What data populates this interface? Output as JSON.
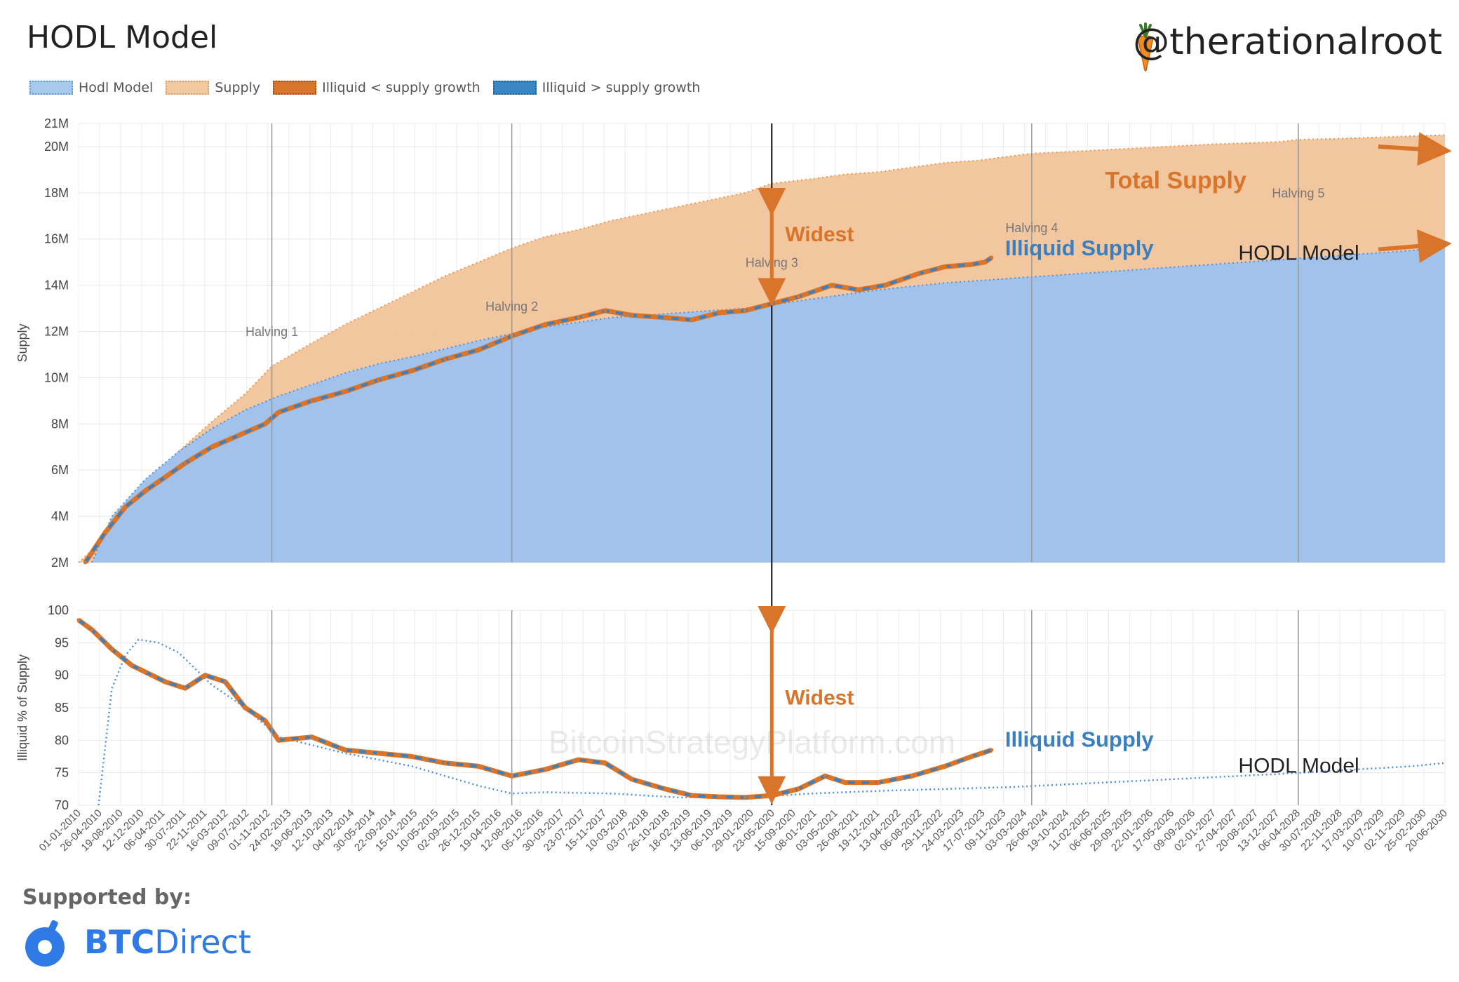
{
  "header": {
    "title": "HODL Model",
    "handle": "@therationalroot"
  },
  "legend": [
    {
      "label": "Hodl Model",
      "fill": "#a7c8ef",
      "border": "#5a9ad8"
    },
    {
      "label": "Supply",
      "fill": "#f3c9a0",
      "border": "#e39a5a"
    },
    {
      "label": "Illiquid < supply growth",
      "fill": "#d9752a",
      "border": "#a64e10"
    },
    {
      "label": "Illiquid > supply growth",
      "fill": "#3a87c4",
      "border": "#1f5f96"
    }
  ],
  "footer": {
    "supported_label": "Supported by:",
    "sponsor_bold": "BTC",
    "sponsor_rest": "Direct"
  },
  "colors": {
    "hodl": "#9fc2ec",
    "hodl_line": "#4a90e2",
    "supply": "#f1c49b",
    "supply_line": "#e8964f",
    "orange": "#d9752a",
    "blue": "#3a7fc0"
  },
  "chart_data": [
    {
      "type": "area",
      "ylabel": "Supply",
      "ylim": [
        2,
        21
      ],
      "y_unit": "M",
      "yticks": [
        "2M",
        "4M",
        "6M",
        "8M",
        "10M",
        "12M",
        "14M",
        "16M",
        "18M",
        "20M",
        "21M"
      ],
      "ytick_values": [
        2,
        4,
        6,
        8,
        10,
        12,
        14,
        16,
        18,
        20,
        21
      ],
      "xlim": [
        2010.0,
        2030.5
      ],
      "grid": true,
      "series": [
        {
          "name": "Supply",
          "x": [
            2010.0,
            2010.3,
            2010.7,
            2011.0,
            2011.5,
            2012.0,
            2012.5,
            2012.9,
            2013.5,
            2014.0,
            2014.5,
            2015.0,
            2015.5,
            2016.0,
            2016.5,
            2017.0,
            2017.5,
            2018.0,
            2018.5,
            2019.0,
            2019.5,
            2020.0,
            2020.4,
            2021.0,
            2021.5,
            2022.0,
            2022.5,
            2023.0,
            2023.5,
            2024.3,
            2025.0,
            2026.0,
            2027.0,
            2028.0,
            2028.3,
            2029.0,
            2030.0,
            2030.5
          ],
          "values": [
            2.0,
            2.8,
            4.3,
            5.3,
            6.8,
            8.1,
            9.3,
            10.5,
            11.5,
            12.3,
            13.0,
            13.7,
            14.4,
            15.0,
            15.6,
            16.1,
            16.4,
            16.8,
            17.1,
            17.4,
            17.7,
            18.0,
            18.4,
            18.6,
            18.8,
            18.9,
            19.1,
            19.3,
            19.4,
            19.7,
            19.8,
            19.95,
            20.1,
            20.2,
            20.3,
            20.35,
            20.45,
            20.5
          ]
        },
        {
          "name": "Hodl Model",
          "x": [
            2010.2,
            2010.5,
            2011.0,
            2011.5,
            2012.0,
            2012.5,
            2013.0,
            2013.5,
            2014.0,
            2014.5,
            2015.0,
            2016.0,
            2017.0,
            2018.0,
            2019.0,
            2020.0,
            2021.0,
            2022.0,
            2023.0,
            2024.0,
            2025.0,
            2026.0,
            2027.0,
            2028.0,
            2029.0,
            2030.0,
            2030.5
          ],
          "values": [
            2.0,
            4.0,
            5.6,
            6.8,
            7.8,
            8.6,
            9.2,
            9.7,
            10.2,
            10.6,
            10.9,
            11.6,
            12.2,
            12.6,
            12.8,
            13.0,
            13.4,
            13.8,
            14.1,
            14.3,
            14.5,
            14.7,
            14.9,
            15.1,
            15.3,
            15.5,
            15.7
          ]
        },
        {
          "name": "Illiquid Supply",
          "x": [
            2010.1,
            2010.4,
            2010.7,
            2011.0,
            2011.3,
            2011.6,
            2012.0,
            2012.4,
            2012.8,
            2013.0,
            2013.5,
            2014.0,
            2014.5,
            2015.0,
            2015.5,
            2016.0,
            2016.5,
            2017.0,
            2017.5,
            2017.9,
            2018.3,
            2018.8,
            2019.2,
            2019.6,
            2020.0,
            2020.4,
            2020.8,
            2021.3,
            2021.7,
            2022.1,
            2022.6,
            2023.0,
            2023.4,
            2023.6,
            2023.7
          ],
          "values": [
            2.0,
            3.3,
            4.4,
            5.1,
            5.7,
            6.3,
            7.0,
            7.5,
            8.0,
            8.5,
            9.0,
            9.4,
            9.9,
            10.3,
            10.8,
            11.2,
            11.8,
            12.3,
            12.6,
            12.9,
            12.7,
            12.6,
            12.5,
            12.8,
            12.9,
            13.2,
            13.5,
            14.0,
            13.8,
            14.0,
            14.5,
            14.8,
            14.9,
            15.0,
            15.2
          ]
        }
      ],
      "annotations": [
        {
          "text": "Halving 1",
          "x": 2012.9,
          "y": 11.8
        },
        {
          "text": "Halving 2",
          "x": 2016.5,
          "y": 12.9
        },
        {
          "text": "Halving 3",
          "x": 2020.4,
          "y": 14.8
        },
        {
          "text": "Halving 4",
          "x": 2024.3,
          "y": 16.3
        },
        {
          "text": "Halving 5",
          "x": 2028.3,
          "y": 17.8
        },
        {
          "text": "Widest",
          "x": 2020.6,
          "y": 15.9
        },
        {
          "text": "Total Supply",
          "x": 2025.4,
          "y": 18.2
        },
        {
          "text": "Illiquid Supply",
          "x": 2023.9,
          "y": 15.3
        },
        {
          "text": "HODL Model",
          "x": 2027.4,
          "y": 15.1
        }
      ],
      "watermark": "BitcoinStrategyPlatform.com"
    },
    {
      "type": "line",
      "ylabel": "Illiquid % of Supply",
      "ylim": [
        70,
        100
      ],
      "yticks": [
        "70",
        "75",
        "80",
        "85",
        "90",
        "95",
        "100"
      ],
      "ytick_values": [
        70,
        75,
        80,
        85,
        90,
        95,
        100
      ],
      "xlim": [
        2010.0,
        2030.5
      ],
      "grid": true,
      "series": [
        {
          "name": "HODL Model",
          "x": [
            2010.3,
            2010.5,
            2010.7,
            2010.9,
            2011.2,
            2011.5,
            2012.0,
            2012.5,
            2013.0,
            2014.0,
            2015.0,
            2016.0,
            2016.5,
            2017.0,
            2018.0,
            2019.0,
            2020.0,
            2021.0,
            2022.0,
            2023.0,
            2024.0,
            2025.0,
            2026.0,
            2027.0,
            2028.0,
            2029.0,
            2030.0,
            2030.5
          ],
          "values": [
            70.0,
            88.0,
            93.0,
            95.5,
            95.0,
            93.5,
            88.5,
            85.0,
            80.5,
            78.0,
            76.0,
            73.0,
            71.8,
            72.0,
            71.8,
            71.2,
            71.2,
            71.8,
            72.2,
            72.5,
            72.8,
            73.3,
            73.8,
            74.3,
            74.8,
            75.4,
            76.0,
            76.5
          ]
        },
        {
          "name": "Illiquid Supply",
          "x": [
            2010.0,
            2010.2,
            2010.5,
            2010.8,
            2011.0,
            2011.3,
            2011.6,
            2011.9,
            2012.2,
            2012.5,
            2012.8,
            2013.0,
            2013.5,
            2014.0,
            2014.5,
            2015.0,
            2015.5,
            2016.0,
            2016.5,
            2017.0,
            2017.5,
            2017.9,
            2018.3,
            2018.8,
            2019.2,
            2019.6,
            2020.0,
            2020.4,
            2020.8,
            2021.2,
            2021.5,
            2022.0,
            2022.5,
            2023.0,
            2023.4,
            2023.7
          ],
          "values": [
            98.5,
            97.0,
            94.0,
            91.5,
            90.5,
            89.0,
            88.0,
            90.0,
            89.0,
            85.0,
            83.0,
            80.0,
            80.5,
            78.5,
            78.0,
            77.5,
            76.5,
            76.0,
            74.5,
            75.5,
            77.0,
            76.5,
            74.0,
            72.5,
            71.5,
            71.3,
            71.2,
            71.5,
            72.5,
            74.5,
            73.5,
            73.5,
            74.5,
            76.0,
            77.5,
            78.5
          ]
        }
      ],
      "annotations": [
        {
          "text": "Widest",
          "x": 2020.6,
          "y": 85.5
        },
        {
          "text": "Illiquid Supply",
          "x": 2023.9,
          "y": 79.0
        },
        {
          "text": "HODL Model",
          "x": 2027.4,
          "y": 75.0
        }
      ],
      "watermark": "BitcoinStrategyPlatform.com"
    }
  ],
  "x_axis": {
    "tick_start": 2010.0,
    "tick_labels": [
      "01-01-2010",
      "26-04-2010",
      "19-08-2010",
      "12-12-2010",
      "06-04-2011",
      "30-07-2011",
      "22-11-2011",
      "16-03-2012",
      "09-07-2012",
      "01-11-2012",
      "24-02-2013",
      "19-06-2013",
      "12-10-2013",
      "04-02-2014",
      "30-05-2014",
      "22-09-2014",
      "15-01-2015",
      "10-05-2015",
      "02-09-2015",
      "26-12-2015",
      "19-04-2016",
      "12-08-2016",
      "05-12-2016",
      "30-03-2017",
      "23-07-2017",
      "15-11-2017",
      "10-03-2018",
      "03-07-2018",
      "26-10-2018",
      "18-02-2019",
      "13-06-2019",
      "06-10-2019",
      "29-01-2020",
      "23-05-2020",
      "15-09-2020",
      "08-01-2021",
      "03-05-2021",
      "26-08-2021",
      "19-12-2021",
      "13-04-2022",
      "06-08-2022",
      "29-11-2022",
      "24-03-2023",
      "17-07-2023",
      "09-11-2023",
      "03-03-2024",
      "26-06-2024",
      "19-10-2024",
      "11-02-2025",
      "06-06-2025",
      "29-09-2025",
      "22-01-2026",
      "17-05-2026",
      "09-09-2026",
      "02-01-2027",
      "27-04-2027",
      "20-08-2027",
      "13-12-2027",
      "06-04-2028",
      "30-07-2028",
      "22-11-2028",
      "17-03-2029",
      "10-07-2029",
      "02-11-2029",
      "25-02-2030",
      "20-06-2030"
    ],
    "halving_x": [
      2012.9,
      2016.5,
      2020.4,
      2024.3,
      2028.3
    ]
  }
}
